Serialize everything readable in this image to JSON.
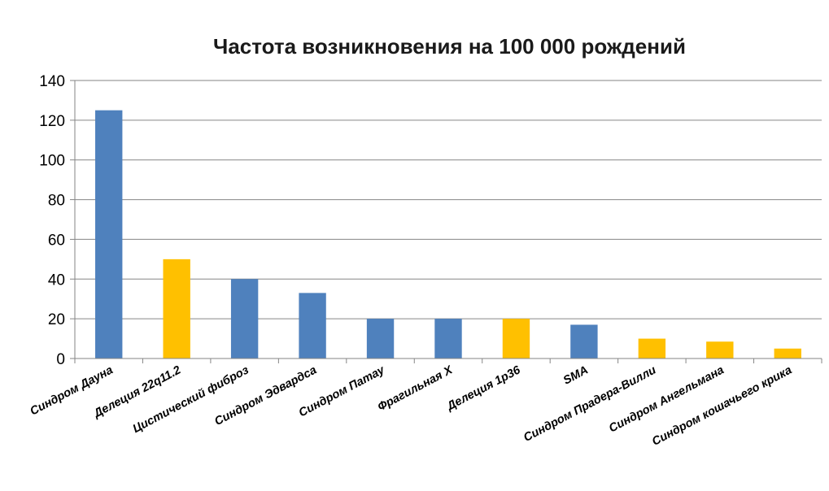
{
  "chart_data": {
    "type": "bar",
    "title": "Частота возникновения на 100 000 рождений",
    "xlabel": "",
    "ylabel": "",
    "ylim": [
      0,
      140
    ],
    "yticks": [
      0,
      20,
      40,
      60,
      80,
      100,
      120,
      140
    ],
    "grid": true,
    "legend": "none",
    "categories": [
      "Синдром Дауна",
      "Делеция 22q11.2",
      "Цистический фиброз",
      "Синдром Эдвардса",
      "Синдром Патау",
      "Фрагильная X",
      "Делеция 1p36",
      "SMA",
      "Синдром Прадера-Вилли",
      "Синдром Ангельмана",
      "Синдром кошачьего крика"
    ],
    "values": [
      125,
      50,
      40,
      33,
      20,
      20,
      20,
      17,
      10,
      8.5,
      5
    ],
    "bar_colors": [
      "#4F81BD",
      "#FFC000",
      "#4F81BD",
      "#4F81BD",
      "#4F81BD",
      "#4F81BD",
      "#FFC000",
      "#4F81BD",
      "#FFC000",
      "#FFC000",
      "#FFC000"
    ]
  },
  "colors": {
    "blue": "#4F81BD",
    "gold": "#FFC000",
    "grid": "#868686",
    "axis": "#868686"
  }
}
